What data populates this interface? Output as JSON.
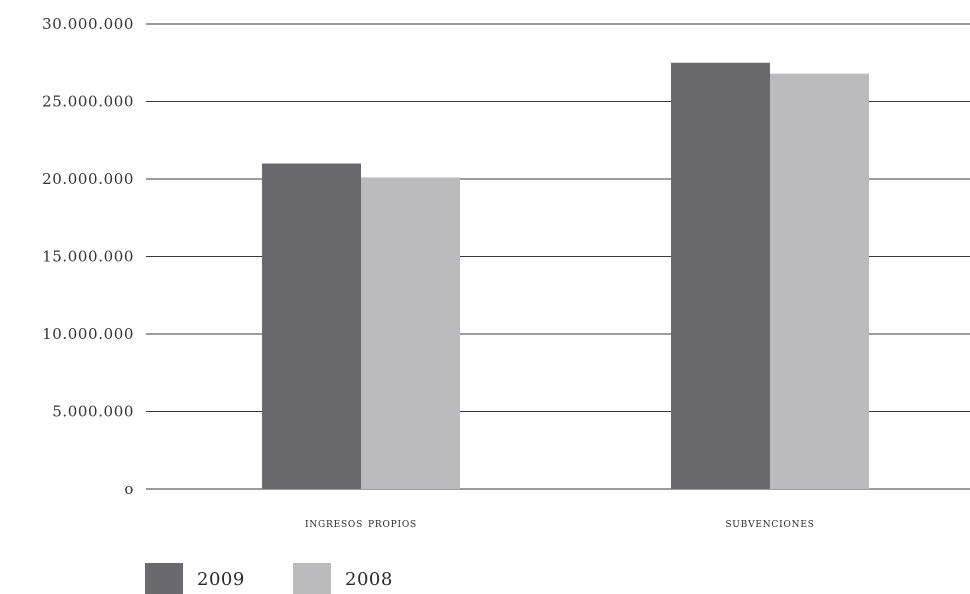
{
  "chart_data": {
    "type": "bar",
    "categories": [
      "ingresos propios",
      "subvenciones"
    ],
    "series": [
      {
        "name": "2009",
        "values": [
          21000000,
          27500000
        ],
        "color": "#6a6a6e"
      },
      {
        "name": "2008",
        "values": [
          20100000,
          26800000
        ],
        "color": "#bbbbbd"
      }
    ],
    "ylim": [
      0,
      30000000
    ],
    "yticks": [
      0,
      5000000,
      10000000,
      15000000,
      20000000,
      25000000,
      30000000
    ],
    "ytick_labels": [
      "o",
      "5.000.000",
      "10.000.000",
      "15.000.000",
      "20.000.000",
      "25.000.000",
      "30.000.000"
    ],
    "title": "",
    "xlabel": "",
    "ylabel": "",
    "grid": "horizontal",
    "legend_placement": "bottom-left"
  }
}
